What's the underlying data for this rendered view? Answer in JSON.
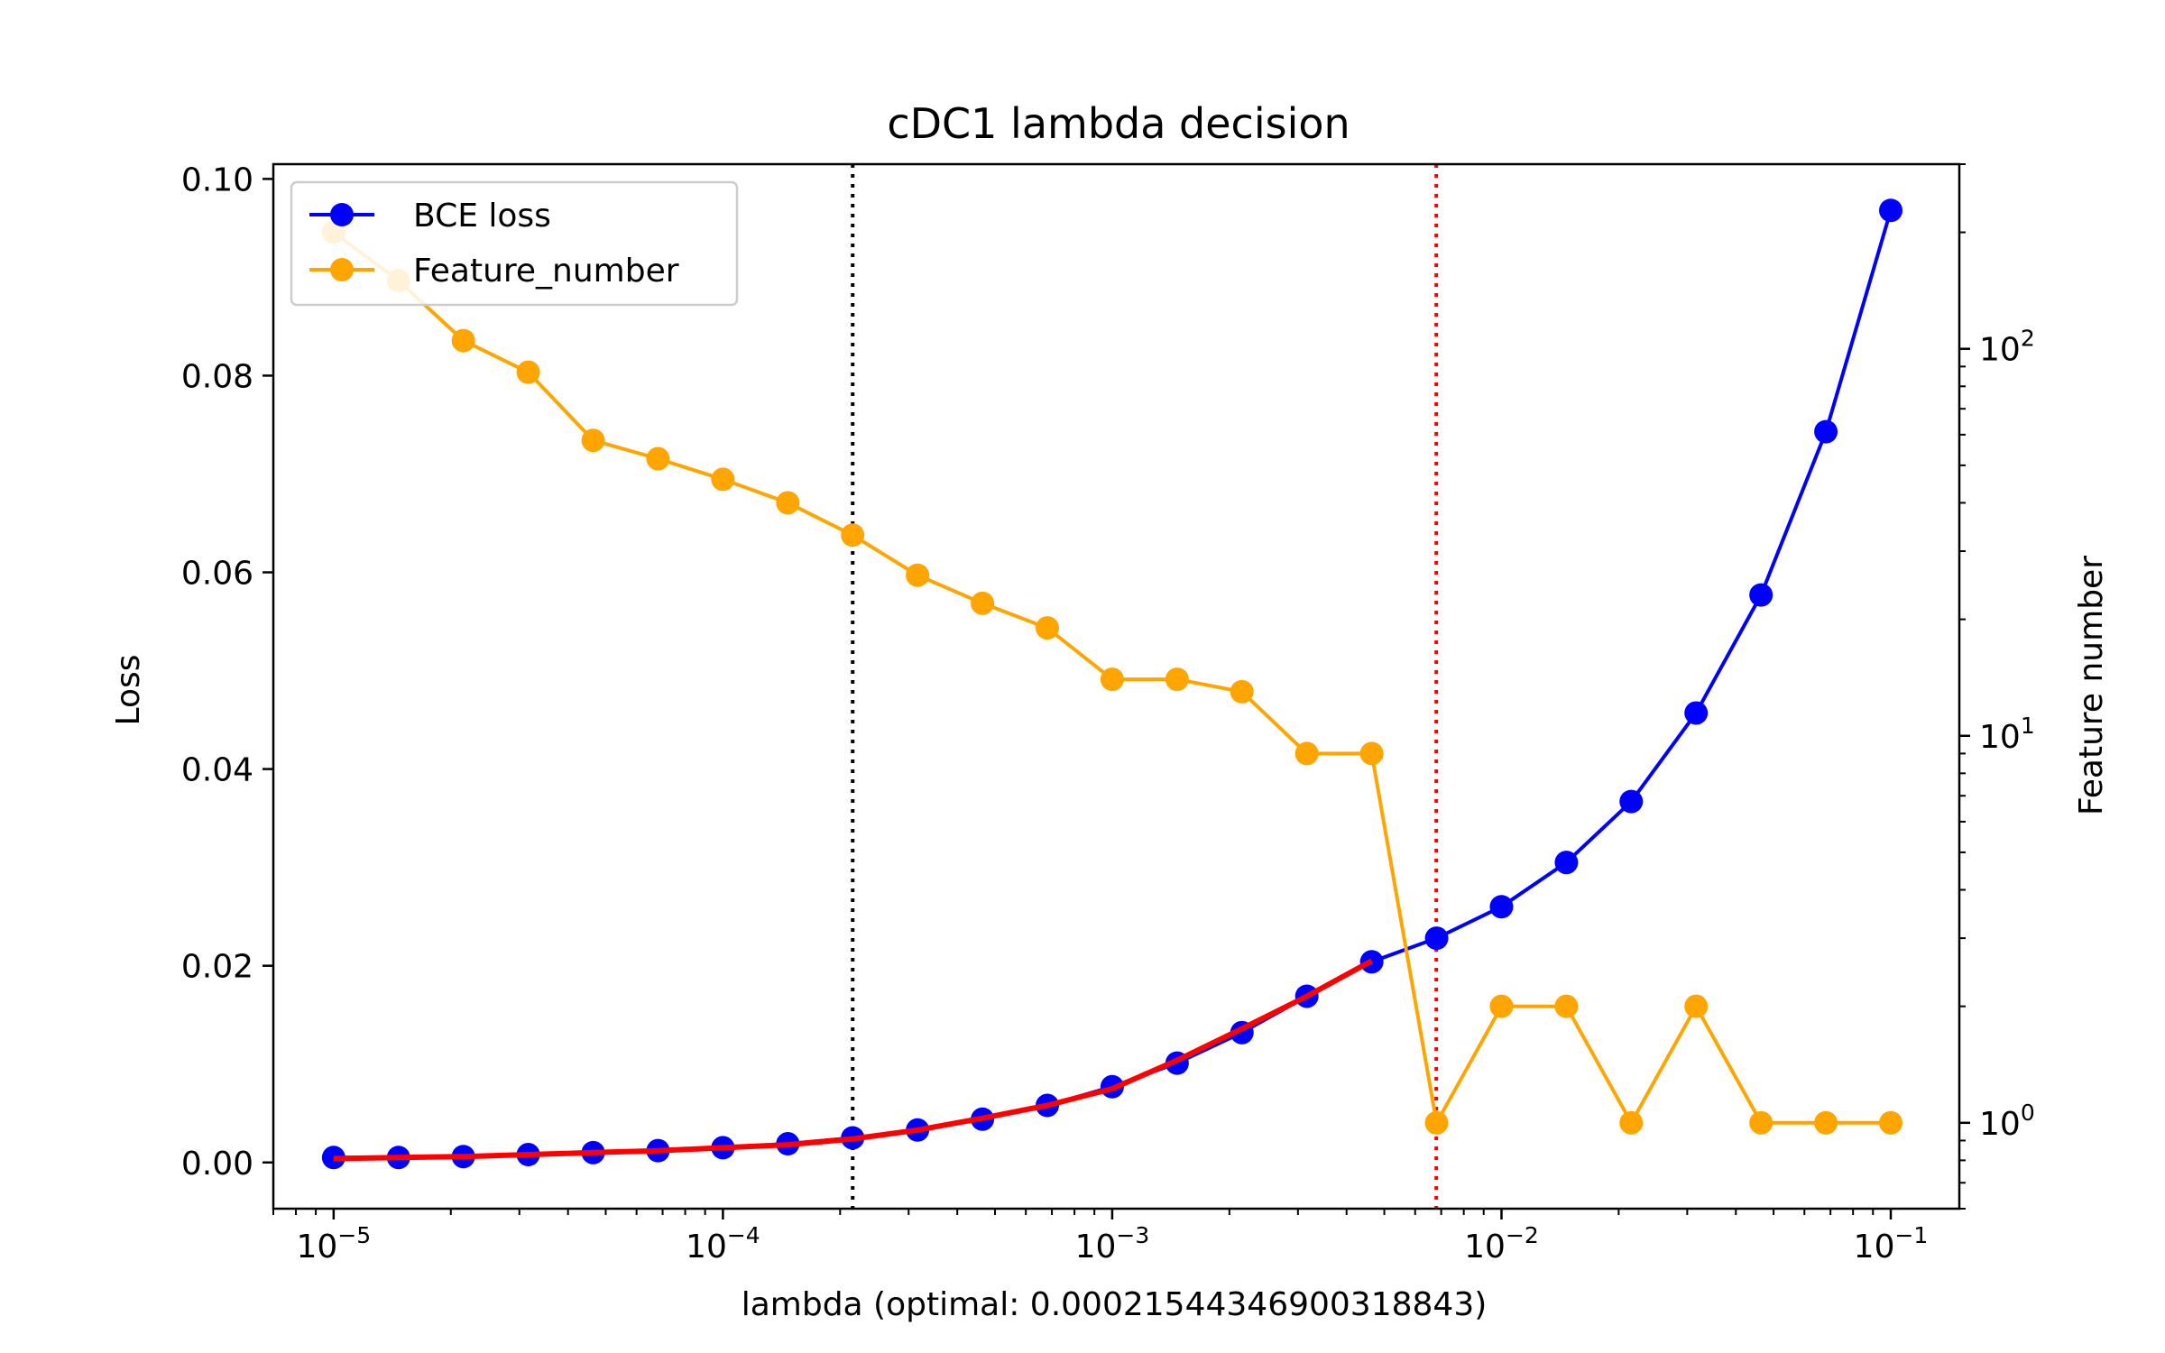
{
  "chart_data": {
    "type": "line",
    "title": "cDC1 lambda decision",
    "xlabel": "lambda (optimal: 0.00021544346900318843)",
    "ylabel": "Loss",
    "y2label": "Feature number",
    "x_scale": "log",
    "xlim": [
      7e-06,
      0.15
    ],
    "ylim": [
      -0.0047,
      0.1015
    ],
    "y2_scale": "log",
    "y2lim": [
      0.6,
      300
    ],
    "x_ticks": [
      {
        "value": 1e-05,
        "base": "10",
        "exp": "−5"
      },
      {
        "value": 0.0001,
        "base": "10",
        "exp": "−4"
      },
      {
        "value": 0.001,
        "base": "10",
        "exp": "−3"
      },
      {
        "value": 0.01,
        "base": "10",
        "exp": "−2"
      },
      {
        "value": 0.1,
        "base": "10",
        "exp": "−1"
      }
    ],
    "y_ticks": [
      {
        "value": 0.0,
        "label": "0.00"
      },
      {
        "value": 0.02,
        "label": "0.02"
      },
      {
        "value": 0.04,
        "label": "0.04"
      },
      {
        "value": 0.06,
        "label": "0.06"
      },
      {
        "value": 0.08,
        "label": "0.08"
      },
      {
        "value": 0.1,
        "label": "0.10"
      }
    ],
    "y2_ticks": [
      {
        "value": 1,
        "base": "10",
        "exp": "0"
      },
      {
        "value": 10,
        "base": "10",
        "exp": "1"
      },
      {
        "value": 100,
        "base": "10",
        "exp": "2"
      }
    ],
    "x": [
      1e-05,
      1.468e-05,
      2.154e-05,
      3.162e-05,
      4.642e-05,
      6.813e-05,
      0.0001,
      0.0001468,
      0.0002154,
      0.0003162,
      0.0004642,
      0.0006813,
      0.001,
      0.001468,
      0.002154,
      0.003162,
      0.004642,
      0.006813,
      0.01,
      0.01468,
      0.02154,
      0.03162,
      0.04642,
      0.06813,
      0.1
    ],
    "series": [
      {
        "name": "BCE loss",
        "axis": "left",
        "color": "#0000ff",
        "values": [
          0.0005,
          0.0005,
          0.0006,
          0.0008,
          0.001,
          0.0012,
          0.0015,
          0.0019,
          0.0025,
          0.0033,
          0.0044,
          0.0058,
          0.0077,
          0.0101,
          0.0132,
          0.0169,
          0.0204,
          0.0228,
          0.026,
          0.0305,
          0.0367,
          0.0457,
          0.0577,
          0.0743,
          0.0968
        ]
      },
      {
        "name": "Feature_number",
        "axis": "right",
        "color": "#ffa500",
        "values": [
          200,
          150,
          105,
          87,
          58,
          52,
          46,
          40,
          33,
          26,
          22,
          19,
          14,
          14,
          13,
          9,
          9,
          1,
          2,
          2,
          1,
          2,
          1,
          1,
          1
        ]
      }
    ],
    "fit_line": {
      "color": "#ff0000",
      "x": [
        1e-05,
        1.468e-05,
        2.154e-05,
        3.162e-05,
        4.642e-05,
        6.813e-05,
        0.0001,
        0.0001468,
        0.0002154,
        0.0003162,
        0.0004642,
        0.0006813,
        0.001,
        0.001468,
        0.002154,
        0.003162,
        0.004642
      ],
      "values": [
        0.0004,
        0.0005,
        0.0006,
        0.0008,
        0.001,
        0.0012,
        0.0015,
        0.0018,
        0.0024,
        0.0033,
        0.0045,
        0.0058,
        0.0075,
        0.0104,
        0.0136,
        0.0169,
        0.0205
      ]
    },
    "vlines": [
      {
        "x": 0.00021544346900318842,
        "color": "#000000",
        "style": "dotted"
      },
      {
        "x": 0.0068,
        "color": "#ff0000",
        "style": "dotted"
      }
    ],
    "legend_position": "upper-left",
    "grid": false
  }
}
